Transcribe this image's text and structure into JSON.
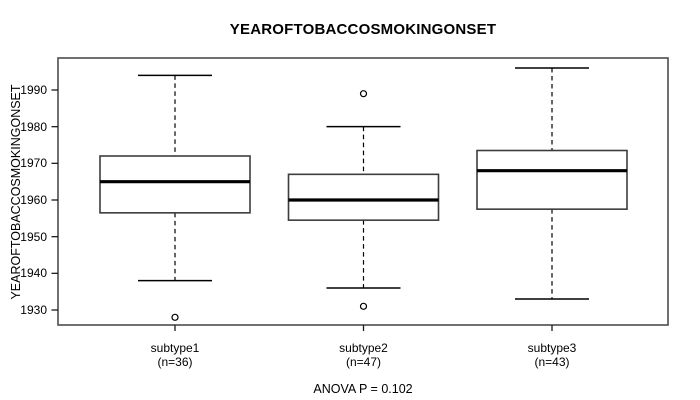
{
  "chart_data": {
    "type": "boxplot",
    "title": "YEAROFTOBACCOSMOKINGONSET",
    "ylabel": "YEAROFTOBACCOSMOKINGONSET",
    "xlabel": "",
    "ylim": [
      1926,
      1998
    ],
    "yticks": [
      1930,
      1940,
      1950,
      1960,
      1970,
      1980,
      1990
    ],
    "categories": [
      "subtype1",
      "subtype2",
      "subtype3"
    ],
    "group_sublabels": [
      "(n=36)",
      "(n=47)",
      "(n=43)"
    ],
    "series": [
      {
        "name": "subtype1",
        "n": 36,
        "whisker_low": 1938,
        "q1": 1956.5,
        "median": 1965,
        "q3": 1972,
        "whisker_high": 1994,
        "outliers": [
          1928
        ]
      },
      {
        "name": "subtype2",
        "n": 47,
        "whisker_low": 1936,
        "q1": 1954.5,
        "median": 1960,
        "q3": 1967,
        "whisker_high": 1980,
        "outliers": [
          1931,
          1989
        ]
      },
      {
        "name": "subtype3",
        "n": 43,
        "whisker_low": 1933,
        "q1": 1957.5,
        "median": 1968,
        "q3": 1973.5,
        "whisker_high": 1996,
        "outliers": []
      }
    ],
    "annotation": "ANOVA P = 0.102",
    "legend": "none",
    "grid": false,
    "style": {
      "background": "#ffffff",
      "box_fill": "#ffffff",
      "box_border": "#3d3d3d",
      "median_color": "#000000",
      "whisker_color": "#000000",
      "plot_border": "#4d4d4d",
      "whisker_style": "dashed",
      "outlier_marker": "open-circle"
    }
  }
}
